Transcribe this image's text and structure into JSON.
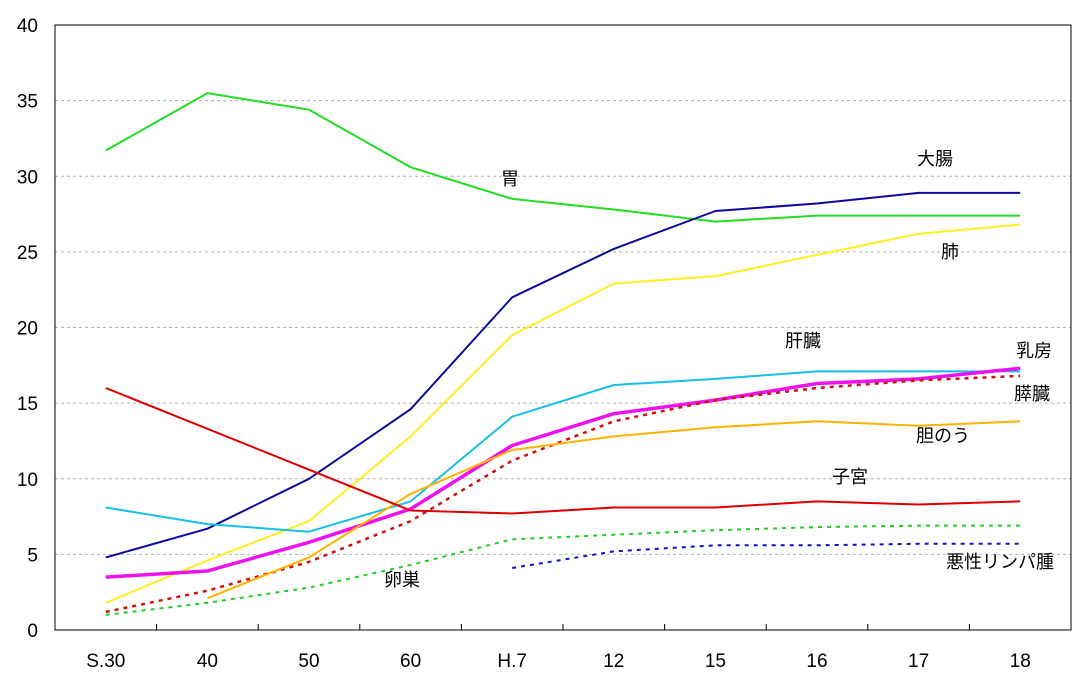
{
  "chart_data": {
    "type": "line",
    "title": "",
    "xlabel": "",
    "ylabel": "",
    "categories": [
      "S.30",
      "40",
      "50",
      "60",
      "H.7",
      "12",
      "15",
      "16",
      "17",
      "18"
    ],
    "ylim": [
      0,
      40
    ],
    "yticks": [
      "0",
      "5",
      "10",
      "15",
      "20",
      "25",
      "30",
      "35",
      "40"
    ],
    "grid": "horizontal-dashed",
    "series": [
      {
        "name": "胃",
        "color": "#22dd22",
        "dash": false,
        "width": 2,
        "values": [
          31.7,
          35.5,
          34.4,
          30.6,
          28.5,
          27.8,
          27.0,
          27.4,
          27.4,
          27.4
        ]
      },
      {
        "name": "大腸",
        "color": "#0b0b9a",
        "dash": false,
        "width": 2,
        "values": [
          4.8,
          6.7,
          10.0,
          14.6,
          22.0,
          25.2,
          27.7,
          28.2,
          28.9,
          28.9
        ]
      },
      {
        "name": "肺",
        "color": "#ffee22",
        "dash": false,
        "width": 2,
        "values": [
          1.8,
          4.6,
          7.2,
          12.8,
          19.5,
          22.9,
          23.4,
          24.8,
          26.2,
          26.8
        ]
      },
      {
        "name": "肝臓",
        "color": "#17bfe6",
        "dash": false,
        "width": 2,
        "values": [
          8.1,
          7.0,
          6.5,
          8.5,
          14.1,
          16.2,
          16.6,
          17.1,
          17.1,
          17.1
        ]
      },
      {
        "name": "乳房",
        "color": "#ee11ee",
        "dash": false,
        "width": 3.5,
        "values": [
          3.5,
          3.9,
          5.8,
          8.0,
          12.2,
          14.3,
          15.2,
          16.3,
          16.6,
          17.3
        ]
      },
      {
        "name": "膵臓",
        "color": "#cc1111",
        "dash": true,
        "width": 2.5,
        "values": [
          1.2,
          2.6,
          4.5,
          7.2,
          11.2,
          13.8,
          15.2,
          16.0,
          16.5,
          16.8
        ]
      },
      {
        "name": "胆のう",
        "color": "#ffb300",
        "dash": false,
        "width": 2,
        "values": [
          null,
          2.1,
          4.8,
          9.0,
          11.9,
          12.8,
          13.4,
          13.8,
          13.5,
          13.8
        ]
      },
      {
        "name": "子宮",
        "color": "#dd0000",
        "dash": false,
        "width": 2,
        "values": [
          16.0,
          13.3,
          10.6,
          7.9,
          7.7,
          8.1,
          8.1,
          8.5,
          8.3,
          8.5
        ]
      },
      {
        "name": "卵巣",
        "color": "#22cc22",
        "dash": true,
        "width": 2,
        "values": [
          1.0,
          1.8,
          2.8,
          4.3,
          6.0,
          6.3,
          6.6,
          6.8,
          6.9,
          6.9
        ]
      },
      {
        "name": "悪性リンパ腫",
        "color": "#1111cc",
        "dash": true,
        "width": 2,
        "values": [
          null,
          null,
          null,
          null,
          4.1,
          5.2,
          5.6,
          5.6,
          5.7,
          5.7
        ]
      }
    ]
  }
}
